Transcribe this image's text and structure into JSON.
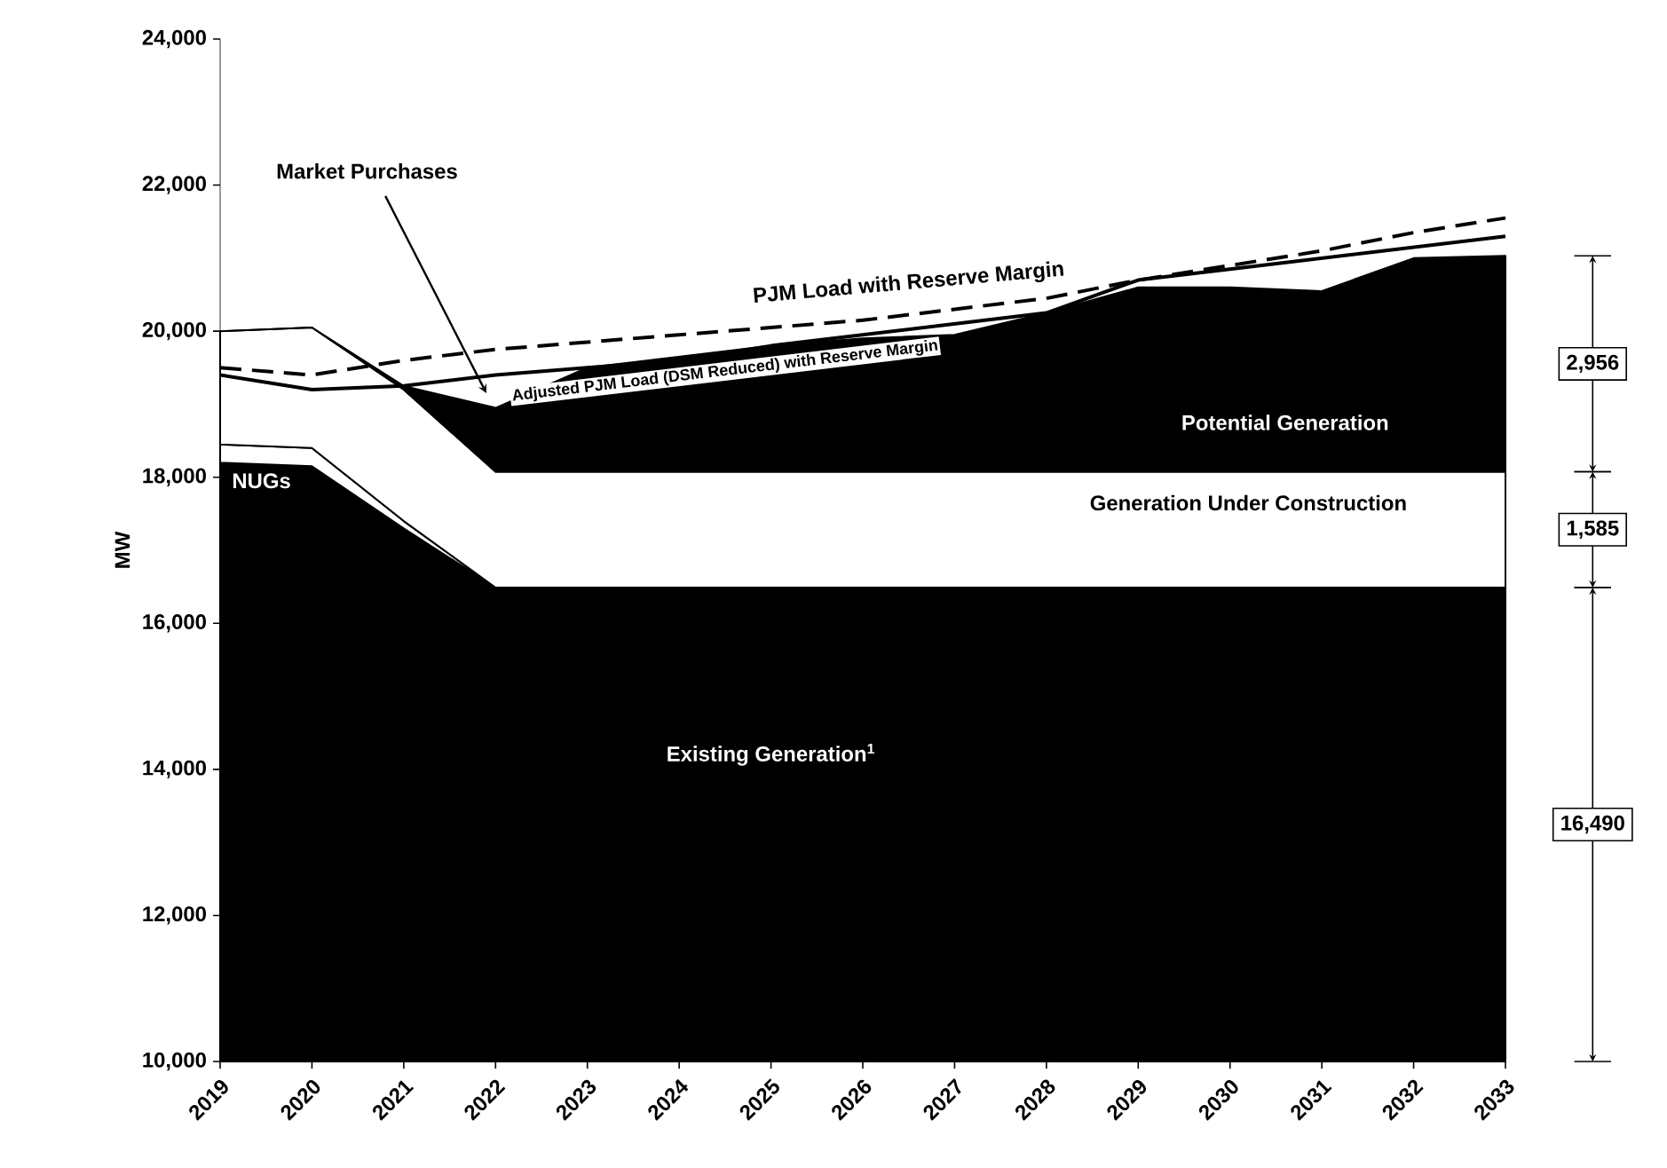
{
  "chart_data": {
    "type": "area",
    "ylabel": "MW",
    "grid": false,
    "categories": [
      "2019",
      "2020",
      "2021",
      "2022",
      "2023",
      "2024",
      "2025",
      "2026",
      "2027",
      "2028",
      "2029",
      "2030",
      "2031",
      "2032",
      "2033"
    ],
    "ylim": [
      10000,
      24000
    ],
    "yticks": [
      {
        "value": 10000,
        "label": "10,000"
      },
      {
        "value": 12000,
        "label": "12,000"
      },
      {
        "value": 14000,
        "label": "14,000"
      },
      {
        "value": 16000,
        "label": "16,000"
      },
      {
        "value": 18000,
        "label": "18,000"
      },
      {
        "value": 20000,
        "label": "20,000"
      },
      {
        "value": 22000,
        "label": "22,000"
      },
      {
        "value": 24000,
        "label": "24,000"
      }
    ],
    "series": [
      {
        "name": "Existing Generation$^{1}$",
        "color": "#000000",
        "values": [
          18200,
          18150,
          17300,
          16490,
          16490,
          16490,
          16490,
          16490,
          16490,
          16490,
          16490,
          16490,
          16490,
          16490,
          16490
        ]
      },
      {
        "name": "NUGs",
        "color": "#ffffff",
        "values": [
          18450,
          18400,
          17400,
          16490,
          16490,
          16490,
          16490,
          16490,
          16490,
          16490,
          16490,
          16490,
          16490,
          16490,
          16490
        ]
      },
      {
        "name": "Generation Under Construction",
        "color": "#ffffff",
        "values": [
          20000,
          20050,
          19200,
          18075,
          18075,
          18075,
          18075,
          18075,
          18075,
          18075,
          18075,
          18075,
          18075,
          18075,
          18075
        ]
      },
      {
        "name": "Potential Generation",
        "color": "#000000",
        "values": [
          20000,
          20050,
          19250,
          18950,
          19500,
          19650,
          19800,
          19900,
          19950,
          20250,
          20600,
          20600,
          20550,
          21000,
          21031
        ]
      },
      {
        "name": "PJM Load with Reserve Margin",
        "type": "line",
        "line_style": "dashed",
        "color": "#000000",
        "values": [
          19500,
          19400,
          19600,
          19750,
          19850,
          19950,
          20050,
          20150,
          20300,
          20450,
          20700,
          20900,
          21100,
          21350,
          21550
        ]
      },
      {
        "name": "Adjusted PJM Load (DSM Reduced) with Reserve Margin",
        "type": "line",
        "line_style": "solid",
        "color": "#000000",
        "values": [
          19400,
          19200,
          19250,
          19400,
          19500,
          19600,
          19800,
          19950,
          20100,
          20250,
          20700,
          20850,
          21000,
          21150,
          21300
        ]
      }
    ],
    "annotations": [
      "Market Purchases",
      "2,956",
      "1,585",
      "16,490"
    ]
  }
}
